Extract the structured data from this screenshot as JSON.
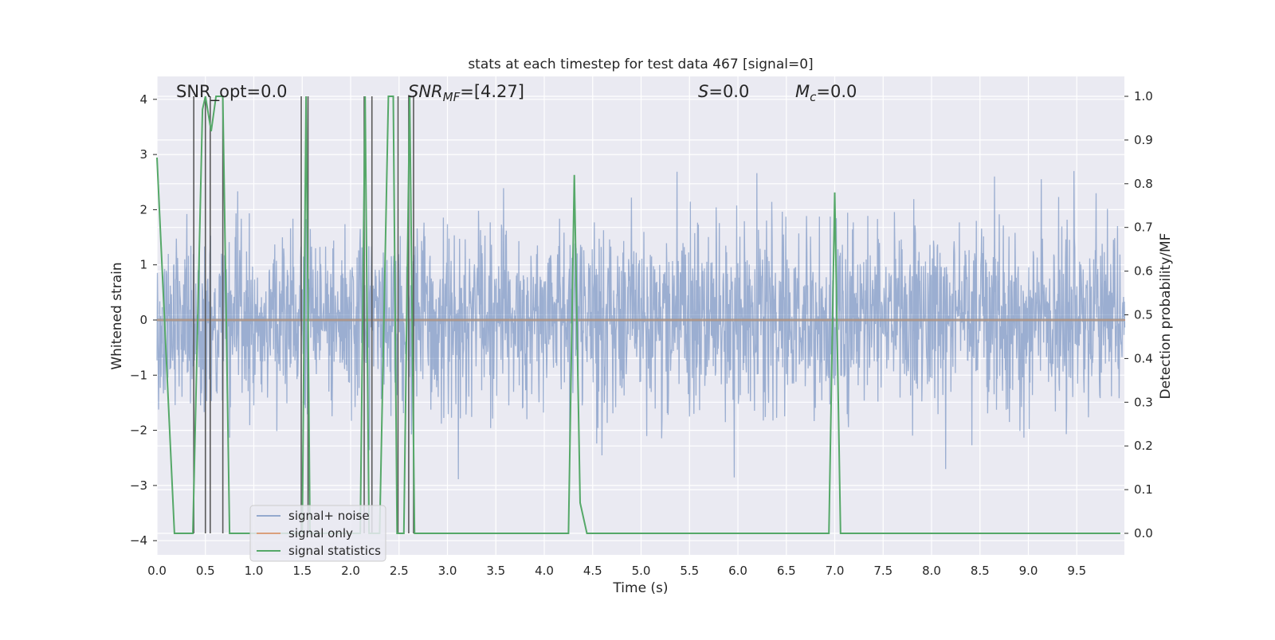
{
  "chart_data": {
    "type": "line",
    "title": "stats at each timestep for test data 467 [signal=0]",
    "xlabel": "Time (s)",
    "ylabel_left": "Whitened strain",
    "ylabel_right": "Detection probability/MF",
    "xlim": [
      0.0,
      10.0
    ],
    "ylim_left": [
      -4.25,
      4.4
    ],
    "ylim_right": [
      -0.05,
      1.04
    ],
    "x_ticks": [
      0.0,
      0.5,
      1.0,
      1.5,
      2.0,
      2.5,
      3.0,
      3.5,
      4.0,
      4.5,
      5.0,
      5.5,
      6.0,
      6.5,
      7.0,
      7.5,
      8.0,
      8.5,
      9.0,
      9.5
    ],
    "x_tick_labels": [
      "0.0",
      "0.5",
      "1.0",
      "1.5",
      "2.0",
      "2.5",
      "3.0",
      "3.5",
      "4.0",
      "4.5",
      "5.0",
      "5.5",
      "6.0",
      "6.5",
      "7.0",
      "7.5",
      "8.0",
      "8.5",
      "9.0",
      "9.5"
    ],
    "y_left_ticks": [
      4,
      3,
      2,
      1,
      0,
      -1,
      -2,
      -3,
      -4
    ],
    "y_left_tick_labels": [
      "4",
      "3",
      "2",
      "1",
      "0",
      "−1",
      "−2",
      "−3",
      "−4"
    ],
    "y_right_ticks": [
      1.0,
      0.9,
      0.8,
      0.7,
      0.6,
      0.5,
      0.4,
      0.3,
      0.2,
      0.1,
      0.0
    ],
    "y_right_tick_labels": [
      "1.0",
      "0.9",
      "0.8",
      "0.7",
      "0.6",
      "0.5",
      "0.4",
      "0.3",
      "0.2",
      "0.1",
      "0.0"
    ],
    "grid": true,
    "legend_position": "lower-left",
    "series": [
      {
        "name": "signal+ noise",
        "color": "#4c72b0",
        "axis": "left",
        "description_values": "noise-like whitened strain, mostly within [-2.5, 2.7], peaks near 4.0"
      },
      {
        "name": "signal only",
        "color": "#dd8452",
        "axis": "left",
        "values_x": [
          0.0,
          10.0
        ],
        "values_y": [
          0.0,
          0.0
        ]
      },
      {
        "name": "signal statistics",
        "color": "#55a868",
        "axis": "right",
        "x": [
          0.0,
          0.18,
          0.37,
          0.47,
          0.5,
          0.56,
          0.61,
          0.68,
          0.75,
          1.5,
          1.54,
          1.58,
          1.62,
          2.1,
          2.15,
          2.19,
          2.24,
          2.3,
          2.39,
          2.44,
          2.48,
          2.55,
          2.61,
          2.66,
          2.71,
          4.25,
          4.31,
          4.37,
          4.44,
          6.94,
          7.0,
          7.06,
          9.95
        ],
        "y": [
          0.86,
          0.0,
          0.0,
          0.97,
          1.0,
          0.92,
          1.0,
          1.0,
          0.0,
          0.0,
          1.0,
          0.0,
          0.0,
          0.0,
          1.0,
          0.0,
          0.0,
          0.0,
          1.0,
          1.0,
          0.0,
          0.0,
          1.0,
          0.0,
          0.0,
          0.0,
          0.82,
          0.07,
          0.0,
          0.0,
          0.78,
          0.0,
          0.0
        ]
      }
    ],
    "trigger_lines_x": [
      0.38,
      0.5,
      0.55,
      0.68,
      1.49,
      1.56,
      2.14,
      2.22,
      2.49,
      2.6,
      2.65
    ],
    "annotations": [
      {
        "text": "SNR_opt=0.0"
      },
      {
        "html": "SNR_MF",
        "text": "=[4.27]"
      },
      {
        "text": "S=0.0"
      },
      {
        "text": "M_c=0.0"
      }
    ]
  },
  "legend": {
    "items": [
      "signal+ noise",
      "signal only",
      "signal statistics"
    ]
  },
  "annotations_text": {
    "snr_opt": "SNR_opt=0.0",
    "snr_mf_main": "SNR",
    "snr_mf_sub": "MF",
    "snr_mf_value": "=[4.27]",
    "s_main": "S",
    "s_value": "=0.0",
    "mc_main": "M",
    "mc_sub": "c",
    "mc_value": "=0.0"
  }
}
